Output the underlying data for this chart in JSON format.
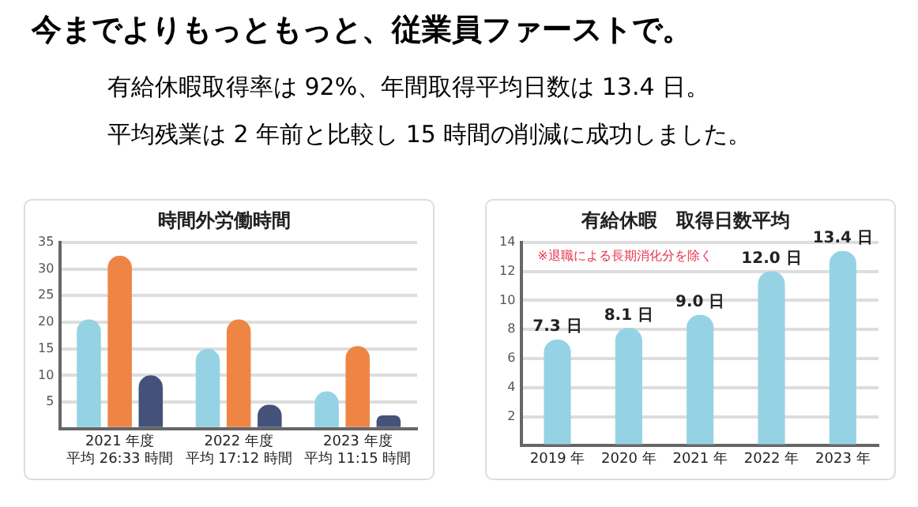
{
  "chart_data": [
    {
      "type": "other",
      "title": "今までよりもっともっと、従業員ファーストで。",
      "annotations": [
        "有給休暇取得率は 92%、年間取得平均日数は 13.4 日。",
        "平均残業は 2 年前と比較し 15 時間の削減に成功しました。"
      ]
    },
    {
      "type": "bar",
      "title": "時間外労働時間",
      "categories": [
        "2021 年度平均 26:33 時間",
        "2022 年度平均 17:12 時間",
        "2023 年度平均 11:15 時間"
      ],
      "series": [
        {
          "color": "#95d3e4",
          "values": [
            20.5,
            15,
            7
          ]
        },
        {
          "color": "#ee8545",
          "values": [
            32.5,
            20.5,
            15.5
          ]
        },
        {
          "color": "#44527a",
          "values": [
            10,
            4.5,
            2.5
          ]
        }
      ],
      "ylim": [
        0,
        35
      ],
      "yticks": [
        {
          "value": 0,
          "label": null
        },
        5,
        10,
        15,
        20,
        25,
        30,
        35
      ],
      "grid": "y",
      "legend": false
    },
    {
      "type": "bar",
      "title": "有給休暇　取得日数平均",
      "categories": [
        "2019 年",
        "2020 年",
        "2021 年",
        "2022 年",
        "2023 年"
      ],
      "series": [
        {
          "color": "#95d3e4",
          "values": [
            7.3,
            8.1,
            9.0,
            12.0,
            13.4
          ],
          "value_labels": [
            "7.3 日",
            "8.1 日",
            "9.0 日",
            "12.0 日",
            "13.4 日"
          ]
        }
      ],
      "ylim": [
        0,
        14
      ],
      "yticks": [
        {
          "value": 0,
          "label": null
        },
        2,
        4,
        6,
        8,
        10,
        12,
        14
      ],
      "grid": "y",
      "legend": false,
      "annotations": [
        "※退職による長期消化分を除く"
      ]
    }
  ]
}
